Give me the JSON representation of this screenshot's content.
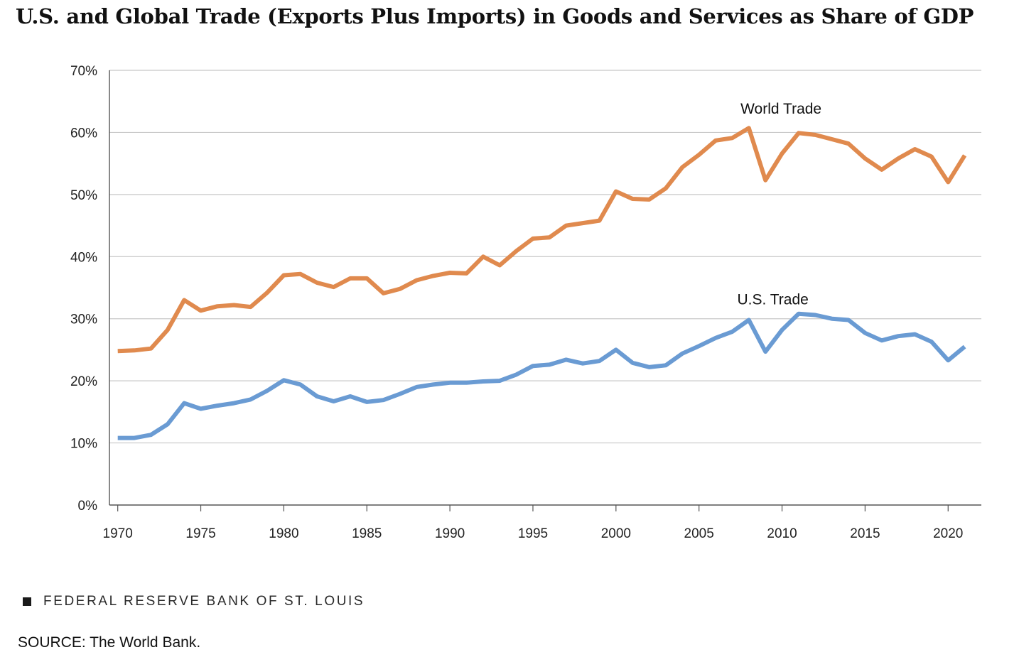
{
  "chart_data": {
    "type": "line",
    "title": "U.S. and Global Trade (Exports Plus Imports) in Goods and Services as Share of GDP",
    "xlabel": "",
    "ylabel": "",
    "xlim": [
      1969.5,
      2022
    ],
    "ylim": [
      0,
      70
    ],
    "y_tick_values": [
      0,
      10,
      20,
      30,
      40,
      50,
      60,
      70
    ],
    "y_tick_labels": [
      "0%",
      "10%",
      "20%",
      "30%",
      "40%",
      "50%",
      "60%",
      "70%"
    ],
    "x_tick_values": [
      1970,
      1975,
      1980,
      1985,
      1990,
      1995,
      2000,
      2005,
      2010,
      2015,
      2020
    ],
    "x_tick_labels": [
      "1970",
      "1975",
      "1980",
      "1985",
      "1990",
      "1995",
      "2000",
      "2005",
      "2010",
      "2015",
      "2020"
    ],
    "grid": "horizontal",
    "legend": "none",
    "x": [
      1970,
      1971,
      1972,
      1973,
      1974,
      1975,
      1976,
      1977,
      1978,
      1979,
      1980,
      1981,
      1982,
      1983,
      1984,
      1985,
      1986,
      1987,
      1988,
      1989,
      1990,
      1991,
      1992,
      1993,
      1994,
      1995,
      1996,
      1997,
      1998,
      1999,
      2000,
      2001,
      2002,
      2003,
      2004,
      2005,
      2006,
      2007,
      2008,
      2009,
      2010,
      2011,
      2012,
      2013,
      2014,
      2015,
      2016,
      2017,
      2018,
      2019,
      2020,
      2021
    ],
    "series": [
      {
        "name": "World Trade",
        "color": "#e08a4e",
        "values": [
          24.8,
          24.9,
          25.2,
          28.2,
          33.0,
          31.3,
          32.0,
          32.2,
          31.9,
          34.2,
          37.0,
          37.2,
          35.8,
          35.1,
          36.5,
          36.5,
          34.1,
          34.8,
          36.2,
          36.9,
          37.4,
          37.3,
          40.0,
          38.6,
          40.9,
          42.9,
          43.1,
          45.0,
          45.4,
          45.8,
          50.5,
          49.3,
          49.2,
          51.0,
          54.4,
          56.4,
          58.7,
          59.1,
          60.7,
          52.3,
          56.6,
          59.9,
          59.6,
          58.9,
          58.2,
          55.8,
          54.0,
          55.8,
          57.3,
          56.1,
          52.0,
          56.3
        ]
      },
      {
        "name": "U.S. Trade",
        "color": "#6a9bd3",
        "values": [
          10.8,
          10.8,
          11.3,
          13.0,
          16.4,
          15.5,
          16.0,
          16.4,
          17.0,
          18.4,
          20.1,
          19.4,
          17.5,
          16.7,
          17.5,
          16.6,
          16.9,
          17.9,
          19.0,
          19.4,
          19.7,
          19.7,
          19.9,
          20.0,
          21.0,
          22.4,
          22.6,
          23.4,
          22.8,
          23.2,
          25.0,
          22.9,
          22.2,
          22.5,
          24.4,
          25.6,
          26.9,
          27.9,
          29.8,
          24.7,
          28.2,
          30.8,
          30.6,
          30.0,
          29.8,
          27.7,
          26.5,
          27.2,
          27.5,
          26.3,
          23.3,
          25.5
        ]
      }
    ],
    "annotations": [
      {
        "text": "World Trade",
        "x": 2007.5,
        "y": 63.0
      },
      {
        "text": "U.S. Trade",
        "x": 2007.3,
        "y": 32.3
      }
    ]
  },
  "footer": {
    "brand": "FEDERAL RESERVE BANK OF ST. LOUIS",
    "source": "SOURCE: The World Bank."
  },
  "colors": {
    "grid": "#c8c8c8",
    "axis": "#555555",
    "text": "#111111"
  }
}
